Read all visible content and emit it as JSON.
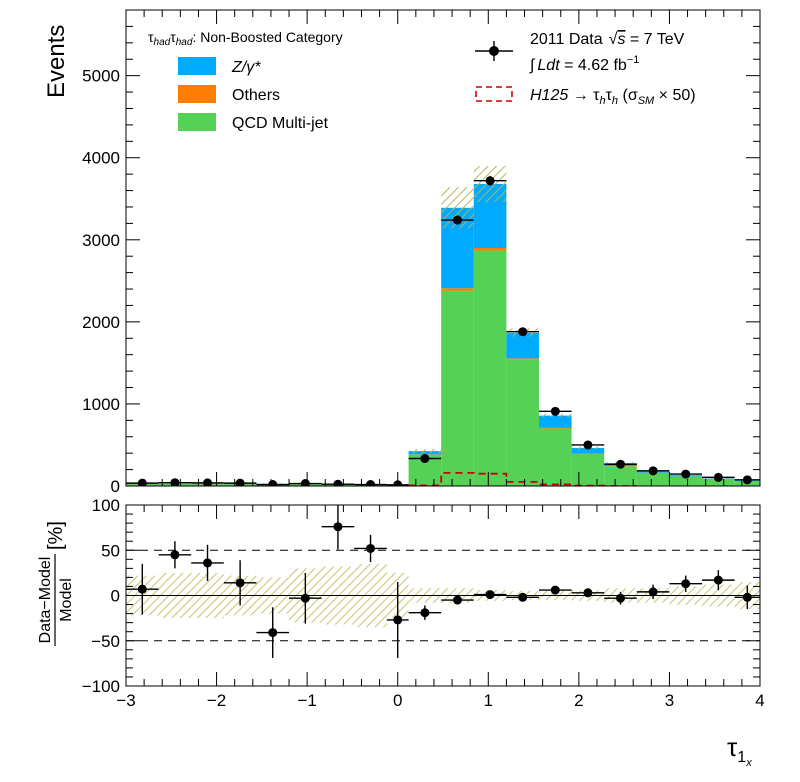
{
  "chart_data": [
    {
      "type": "bar",
      "stacked": true,
      "ylabel": "Events",
      "category_label_prefix": "τ",
      "category_label_sub": "had",
      "category_label_suffix": ": Non-Boosted Category",
      "xlim": [
        -3,
        4
      ],
      "ylim": [
        0,
        5800
      ],
      "yticks": [
        "0",
        "1000",
        "2000",
        "3000",
        "4000",
        "5000"
      ],
      "ytick_values": [
        0,
        1000,
        2000,
        3000,
        4000,
        5000
      ],
      "bin_edges": [
        -3.0,
        -2.64,
        -2.28,
        -1.92,
        -1.56,
        -1.2,
        -0.84,
        -0.48,
        -0.12,
        0.12,
        0.48,
        0.84,
        1.2,
        1.56,
        1.92,
        2.28,
        2.64,
        3.0,
        3.36,
        3.72,
        4.0
      ],
      "series": [
        {
          "name": "QCD Multi-jet",
          "color": "#55d255",
          "values": [
            25,
            28,
            28,
            25,
            22,
            26,
            20,
            15,
            8,
            380,
            2380,
            2870,
            1540,
            700,
            390,
            240,
            160,
            115,
            80,
            60
          ]
        },
        {
          "name": "Others",
          "color": "#ff7d00",
          "values": [
            2,
            2,
            2,
            2,
            2,
            2,
            2,
            2,
            2,
            5,
            30,
            30,
            15,
            8,
            4,
            3,
            2,
            2,
            1,
            1
          ]
        },
        {
          "name": "Z/γ*",
          "color": "#00aaff",
          "values": [
            3,
            3,
            3,
            3,
            3,
            3,
            3,
            3,
            3,
            40,
            980,
            780,
            310,
            150,
            70,
            35,
            20,
            15,
            8,
            6
          ]
        }
      ],
      "uncertainty_band": {
        "name": "Model uncertainty",
        "color": "#c8c87a",
        "up": [
          38,
          40,
          40,
          37,
          35,
          38,
          32,
          28,
          20,
          450,
          3640,
          3900,
          1920,
          880,
          480,
          290,
          192,
          140,
          95,
          73
        ],
        "down": [
          22,
          24,
          24,
          22,
          20,
          24,
          18,
          14,
          6,
          400,
          3140,
          3460,
          1820,
          840,
          450,
          266,
          172,
          124,
          83,
          61
        ]
      },
      "signal": {
        "name": "H125 → τhτh (σSM × 50)",
        "color": "#cc0000",
        "values": [
          0,
          0,
          0,
          0,
          0,
          0,
          0,
          0,
          0,
          8,
          160,
          150,
          50,
          20,
          5,
          0,
          0,
          0,
          0,
          0
        ]
      },
      "data_points": {
        "name": "2011 Data",
        "x": [
          -2.82,
          -2.46,
          -2.1,
          -1.74,
          -1.38,
          -1.02,
          -0.66,
          -0.3,
          0.0,
          0.3,
          0.66,
          1.02,
          1.38,
          1.74,
          2.1,
          2.46,
          2.82,
          3.18,
          3.54,
          3.86
        ],
        "y": [
          35,
          40,
          38,
          35,
          18,
          30,
          22,
          18,
          15,
          335,
          3240,
          3720,
          1880,
          910,
          500,
          265,
          185,
          145,
          105,
          75
        ],
        "xerr": [
          0.18,
          0.18,
          0.18,
          0.18,
          0.18,
          0.18,
          0.18,
          0.18,
          0.12,
          0.18,
          0.18,
          0.18,
          0.18,
          0.18,
          0.18,
          0.18,
          0.18,
          0.18,
          0.18,
          0.14
        ]
      },
      "legend": {
        "placement": "top",
        "entries": [
          "2011 Data",
          "Z/γ*",
          "Others",
          "QCD Multi-jet"
        ],
        "data_label_prefix": "2011 Data",
        "data_label_root": "s",
        "data_label_suffix": " = 7 TeV",
        "lumi_integral": "∫",
        "lumi_text": "Ldt",
        "lumi_value": " = 4.62 fb",
        "lumi_exp": "−1",
        "signal_label_h": "H125",
        "signal_label_arrow": " → τ",
        "signal_label_sub": "h",
        "signal_label_tau": "τ",
        "signal_label_open": " (σ",
        "signal_label_sm": "SM",
        "signal_label_close": " × 50)"
      }
    },
    {
      "type": "scatter",
      "ylabel_num": "Data−Model",
      "ylabel_den": "Model",
      "ylabel_unit": "[%]",
      "xlabel": "τ",
      "xlabel_sub": "1",
      "xlabel_subsub": "x",
      "xlim": [
        -3,
        4
      ],
      "ylim": [
        -100,
        100
      ],
      "xticks": [
        "−3",
        "−2",
        "−1",
        "0",
        "1",
        "2",
        "3",
        "4"
      ],
      "xtick_values": [
        -3,
        -2,
        -1,
        0,
        1,
        2,
        3,
        4
      ],
      "yticks": [
        "−100",
        "−50",
        "0",
        "50",
        "100"
      ],
      "ytick_values": [
        -100,
        -50,
        0,
        50,
        100
      ],
      "reference_lines": [
        -50,
        50
      ],
      "x": [
        -2.82,
        -2.46,
        -2.1,
        -1.74,
        -1.38,
        -1.02,
        -0.66,
        -0.3,
        0.0,
        0.3,
        0.66,
        1.02,
        1.38,
        1.74,
        2.1,
        2.46,
        2.82,
        3.18,
        3.54,
        3.86
      ],
      "y": [
        7,
        45,
        36,
        14,
        -41,
        -3,
        76,
        52,
        -27,
        -19,
        -5,
        1,
        -2,
        6,
        3,
        -3,
        4,
        13,
        17,
        -2
      ],
      "yerr": [
        28,
        15,
        20,
        25,
        28,
        28,
        25,
        15,
        42,
        8,
        3,
        3,
        3,
        4,
        5,
        7,
        8,
        9,
        11,
        13
      ],
      "xerr": [
        0.18,
        0.18,
        0.18,
        0.18,
        0.18,
        0.18,
        0.18,
        0.18,
        0.12,
        0.18,
        0.18,
        0.18,
        0.18,
        0.18,
        0.18,
        0.18,
        0.18,
        0.18,
        0.18,
        0.14
      ],
      "band_halfwidth": [
        22,
        25,
        25,
        22,
        20,
        30,
        32,
        35,
        25,
        8,
        8,
        6,
        5,
        5,
        6,
        8,
        8,
        10,
        12,
        15
      ],
      "band_color": "#c8c87a"
    }
  ]
}
